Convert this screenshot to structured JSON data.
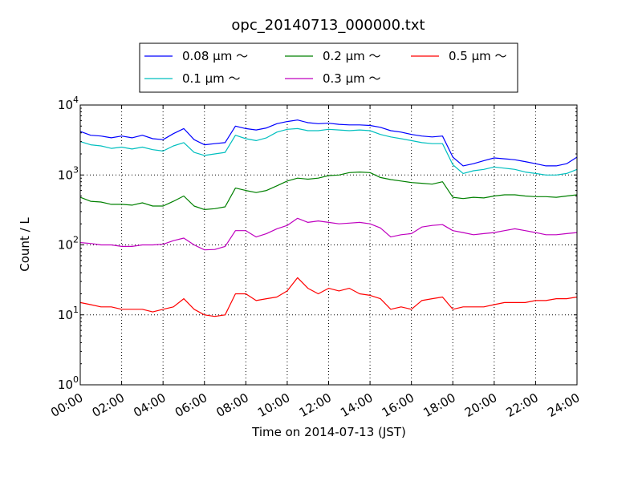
{
  "chart_data": {
    "type": "line",
    "title": "opc_20140713_000000.txt",
    "xlabel": "Time on 2014-07-13 (JST)",
    "ylabel": "Count / L",
    "yscale": "log",
    "ylim": [
      1,
      10000
    ],
    "xlim": [
      "2014-07-13 00:00",
      "2014-07-14 00:00"
    ],
    "grid": true,
    "legend_position": "top-center",
    "legend_ncol": 3,
    "x_ticks": [
      "00:00",
      "02:00",
      "04:00",
      "06:00",
      "08:00",
      "10:00",
      "12:00",
      "14:00",
      "16:00",
      "18:00",
      "20:00",
      "22:00",
      "24:00"
    ],
    "y_ticks": [
      {
        "base": "10",
        "exp": "0",
        "value": 1
      },
      {
        "base": "10",
        "exp": "1",
        "value": 10
      },
      {
        "base": "10",
        "exp": "2",
        "value": 100
      },
      {
        "base": "10",
        "exp": "3",
        "value": 1000
      },
      {
        "base": "10",
        "exp": "4",
        "value": 10000
      }
    ],
    "x_hours": [
      0,
      0.5,
      1,
      1.5,
      2,
      2.5,
      3,
      3.5,
      4,
      4.5,
      5,
      5.5,
      6,
      6.5,
      7,
      7.5,
      8,
      8.5,
      9,
      9.5,
      10,
      10.5,
      11,
      11.5,
      12,
      12.5,
      13,
      13.5,
      14,
      14.5,
      15,
      15.5,
      16,
      16.5,
      17,
      17.5,
      18,
      18.5,
      19,
      19.5,
      20,
      20.5,
      21,
      21.5,
      22,
      22.5,
      23,
      23.5,
      24
    ],
    "series": [
      {
        "name": "0.08 μm ～",
        "color": "#0000ff",
        "values": [
          4200,
          3700,
          3600,
          3400,
          3600,
          3400,
          3700,
          3300,
          3200,
          3900,
          4600,
          3200,
          2700,
          2800,
          2900,
          5000,
          4600,
          4400,
          4700,
          5400,
          5800,
          6100,
          5600,
          5400,
          5500,
          5300,
          5200,
          5200,
          5100,
          4800,
          4300,
          4100,
          3800,
          3600,
          3500,
          3600,
          1800,
          1350,
          1450,
          1600,
          1750,
          1700,
          1650,
          1550,
          1450,
          1350,
          1350,
          1450,
          1800
        ]
      },
      {
        "name": "0.1 μm ～",
        "color": "#00bfbf",
        "values": [
          3000,
          2700,
          2600,
          2400,
          2500,
          2350,
          2500,
          2300,
          2200,
          2600,
          2900,
          2100,
          1900,
          2000,
          2100,
          3700,
          3300,
          3100,
          3400,
          4100,
          4500,
          4600,
          4300,
          4300,
          4500,
          4400,
          4300,
          4400,
          4300,
          3800,
          3500,
          3300,
          3100,
          2900,
          2800,
          2800,
          1400,
          1050,
          1150,
          1200,
          1300,
          1250,
          1200,
          1100,
          1050,
          1000,
          1000,
          1050,
          1200
        ]
      },
      {
        "name": "0.2 μm ～",
        "color": "#008000",
        "values": [
          480,
          420,
          410,
          380,
          380,
          370,
          400,
          360,
          360,
          420,
          500,
          360,
          320,
          330,
          350,
          650,
          600,
          560,
          600,
          700,
          820,
          900,
          870,
          900,
          980,
          1000,
          1080,
          1100,
          1080,
          920,
          860,
          820,
          780,
          760,
          740,
          800,
          480,
          460,
          480,
          470,
          500,
          520,
          520,
          500,
          490,
          490,
          480,
          500,
          520
        ]
      },
      {
        "name": "0.3 μm ～",
        "color": "#bf00bf",
        "values": [
          108,
          105,
          100,
          100,
          95,
          95,
          100,
          100,
          102,
          115,
          125,
          100,
          85,
          86,
          95,
          160,
          160,
          130,
          145,
          170,
          190,
          240,
          210,
          220,
          210,
          200,
          205,
          210,
          200,
          175,
          130,
          140,
          145,
          180,
          190,
          195,
          160,
          150,
          140,
          145,
          150,
          160,
          170,
          160,
          150,
          140,
          140,
          145,
          150
        ]
      },
      {
        "name": "0.5 μm ～",
        "color": "#ff0000",
        "values": [
          15,
          14,
          13,
          13,
          12,
          12,
          12,
          11,
          12,
          13,
          17,
          12,
          10,
          9.5,
          10,
          20,
          20,
          16,
          17,
          18,
          22,
          34,
          24,
          20,
          24,
          22,
          24,
          20,
          19,
          17,
          12,
          13,
          12,
          16,
          17,
          18,
          12,
          13,
          13,
          13,
          14,
          15,
          15,
          15,
          16,
          16,
          17,
          17,
          18
        ]
      }
    ]
  }
}
